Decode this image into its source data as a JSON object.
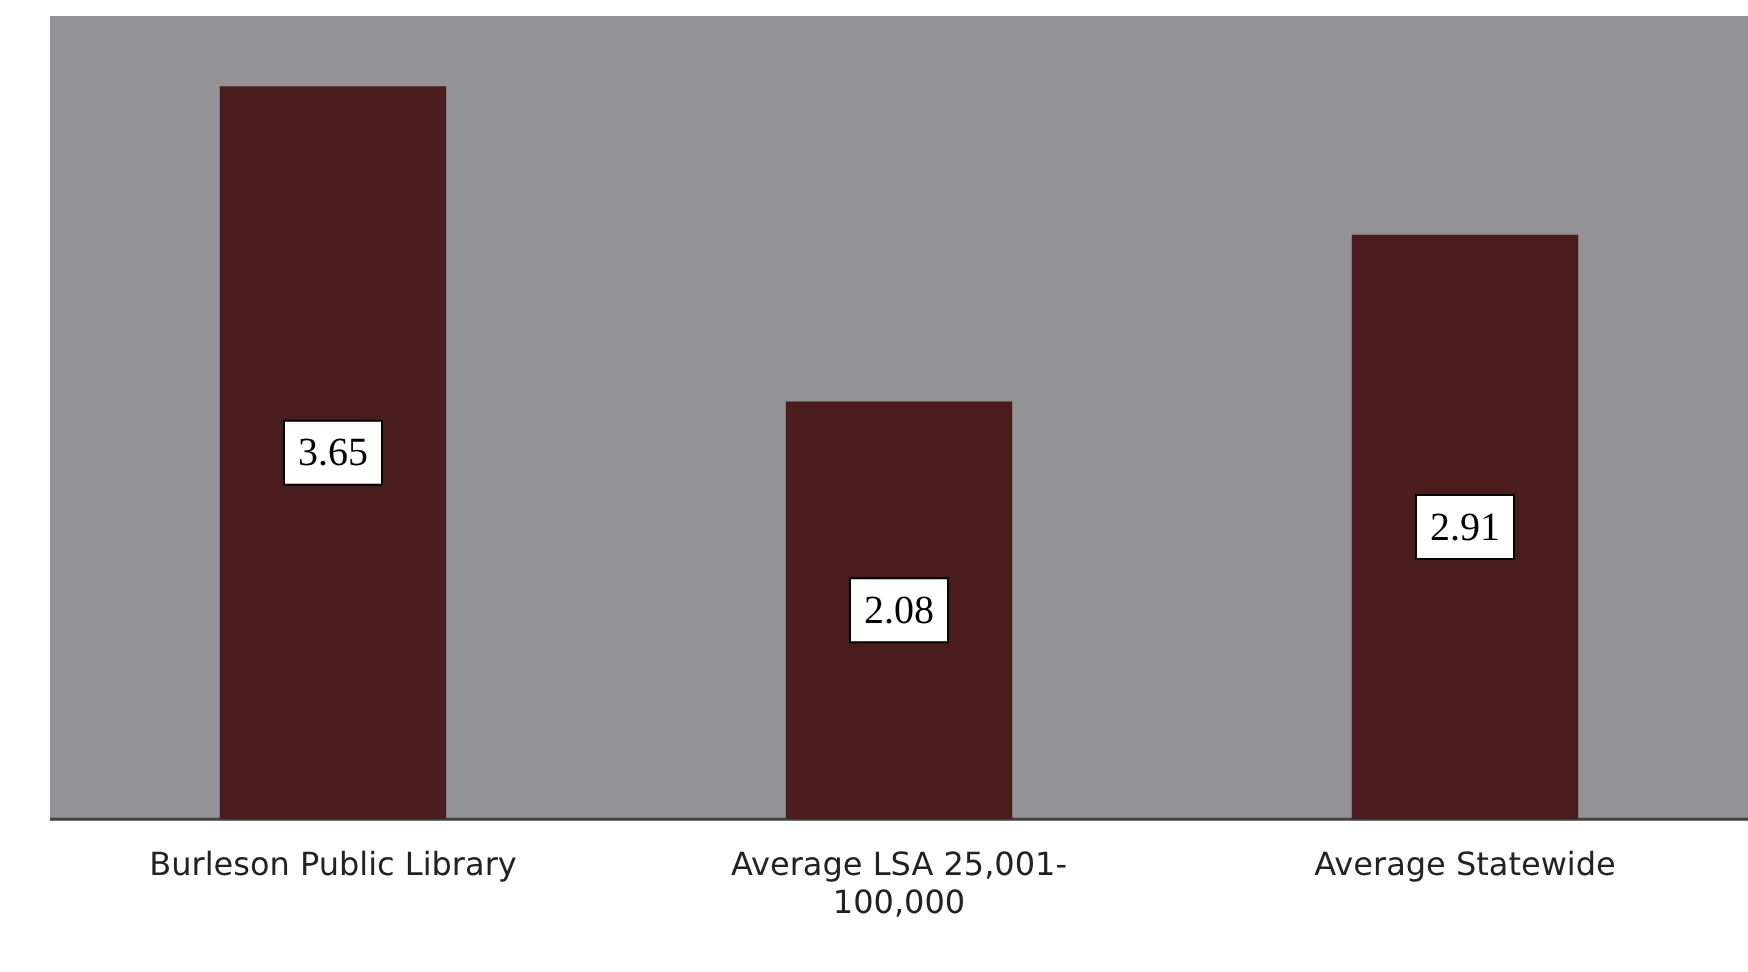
{
  "chart_data": {
    "type": "bar",
    "categories": [
      "Burleson Public Library",
      "Average LSA 25,001-100,000",
      "Average Statewide"
    ],
    "values": [
      3.65,
      2.08,
      2.91
    ],
    "color": "#4a1c1e",
    "ylim": [
      0,
      4
    ],
    "tick_labels": "x",
    "data_labels": true,
    "grid": false,
    "legend": false
  }
}
